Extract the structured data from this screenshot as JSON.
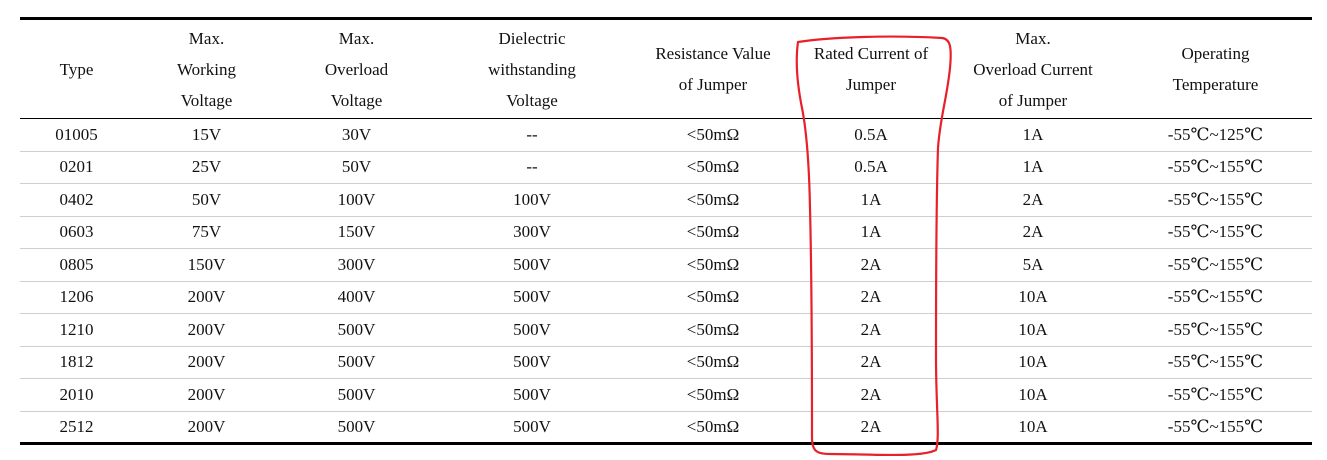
{
  "columns": [
    {
      "lines": [
        "Type"
      ]
    },
    {
      "lines": [
        "Max.",
        "Working",
        "Voltage"
      ]
    },
    {
      "lines": [
        "Max.",
        "Overload",
        "Voltage"
      ]
    },
    {
      "lines": [
        "Dielectric",
        "withstanding",
        "Voltage"
      ]
    },
    {
      "lines": [
        "Resistance Value",
        "of Jumper"
      ]
    },
    {
      "lines": [
        "Rated Current of",
        "Jumper"
      ]
    },
    {
      "lines": [
        "Max.",
        "Overload Current",
        "of Jumper"
      ]
    },
    {
      "lines": [
        "Operating",
        "Temperature"
      ]
    }
  ],
  "rows": [
    [
      "01005",
      "15V",
      "30V",
      "--",
      "<50mΩ",
      "0.5A",
      "1A",
      "-55℃~125℃"
    ],
    [
      "0201",
      "25V",
      "50V",
      "--",
      "<50mΩ",
      "0.5A",
      "1A",
      "-55℃~155℃"
    ],
    [
      "0402",
      "50V",
      "100V",
      "100V",
      "<50mΩ",
      "1A",
      "2A",
      "-55℃~155℃"
    ],
    [
      "0603",
      "75V",
      "150V",
      "300V",
      "<50mΩ",
      "1A",
      "2A",
      "-55℃~155℃"
    ],
    [
      "0805",
      "150V",
      "300V",
      "500V",
      "<50mΩ",
      "2A",
      "5A",
      "-55℃~155℃"
    ],
    [
      "1206",
      "200V",
      "400V",
      "500V",
      "<50mΩ",
      "2A",
      "10A",
      "-55℃~155℃"
    ],
    [
      "1210",
      "200V",
      "500V",
      "500V",
      "<50mΩ",
      "2A",
      "10A",
      "-55℃~155℃"
    ],
    [
      "1812",
      "200V",
      "500V",
      "500V",
      "<50mΩ",
      "2A",
      "10A",
      "-55℃~155℃"
    ],
    [
      "2010",
      "200V",
      "500V",
      "500V",
      "<50mΩ",
      "2A",
      "10A",
      "-55℃~155℃"
    ],
    [
      "2512",
      "200V",
      "500V",
      "500V",
      "<50mΩ",
      "2A",
      "10A",
      "-55℃~155℃"
    ]
  ],
  "highlight": {
    "column_index": 5,
    "color": "#e8202a"
  }
}
